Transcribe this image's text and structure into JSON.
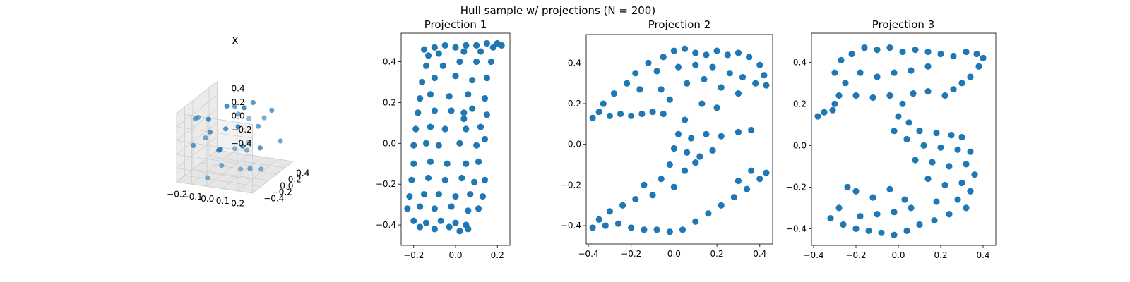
{
  "figure": {
    "suptitle": "Hull sample w/ projections (N = 200)",
    "point_color": "#1f77b4"
  },
  "chart_data": [
    {
      "type": "scatter",
      "projection": "3d",
      "title": "X",
      "xlim": [
        -0.25,
        0.25
      ],
      "ylim": [
        -0.5,
        0.5
      ],
      "zlim": [
        -0.5,
        0.5
      ],
      "xticks": [
        "−0.2",
        "−0.1",
        "0.0",
        "0.1",
        "0.2"
      ],
      "yticks": [
        "−0.4",
        "−0.2",
        "0.0",
        "0.2",
        "0.4"
      ],
      "zticks": [
        "−0.4",
        "−0.2",
        "0.0",
        "0.2",
        "0.4"
      ],
      "grid": true,
      "points": [
        [
          -0.18,
          -0.3,
          0.35
        ],
        [
          -0.12,
          0.25,
          0.3
        ],
        [
          0.05,
          -0.1,
          0.4
        ],
        [
          0.15,
          0.35,
          0.28
        ],
        [
          -0.05,
          0.42,
          0.22
        ],
        [
          0.2,
          -0.4,
          0.18
        ],
        [
          -0.2,
          0.1,
          0.15
        ],
        [
          0.1,
          0.2,
          0.1
        ],
        [
          -0.1,
          -0.35,
          0.12
        ],
        [
          0.0,
          0.0,
          0.45
        ],
        [
          0.18,
          0.05,
          0.32
        ],
        [
          -0.15,
          -0.05,
          0.05
        ],
        [
          0.08,
          -0.3,
          0.0
        ],
        [
          -0.08,
          0.38,
          -0.05
        ],
        [
          0.12,
          -0.15,
          -0.08
        ],
        [
          -0.22,
          -0.2,
          -0.1
        ],
        [
          0.22,
          0.3,
          -0.12
        ],
        [
          0.02,
          0.12,
          -0.18
        ],
        [
          -0.12,
          0.05,
          -0.25
        ],
        [
          0.15,
          -0.42,
          -0.22
        ],
        [
          -0.02,
          -0.25,
          -0.3
        ],
        [
          0.06,
          0.4,
          -0.32
        ],
        [
          -0.18,
          0.32,
          -0.38
        ],
        [
          0.1,
          0.0,
          -0.42
        ],
        [
          -0.06,
          -0.45,
          -0.4
        ],
        [
          0.2,
          -0.1,
          -0.35
        ],
        [
          -0.14,
          -0.38,
          0.42
        ],
        [
          0.04,
          0.3,
          0.38
        ],
        [
          0.16,
          -0.25,
          0.44
        ],
        [
          -0.1,
          0.15,
          0.02
        ]
      ]
    },
    {
      "type": "scatter",
      "title": "Projection 1",
      "xlim": [
        -0.26,
        0.26
      ],
      "ylim": [
        -0.5,
        0.54
      ],
      "xticks": [
        "−0.2",
        "0.0",
        "0.2"
      ],
      "yticks": [
        "−0.4",
        "−0.2",
        "0.0",
        "0.2",
        "0.4"
      ],
      "points": [
        [
          -0.15,
          0.46
        ],
        [
          -0.1,
          0.47
        ],
        [
          -0.05,
          0.48
        ],
        [
          0.0,
          0.47
        ],
        [
          0.05,
          0.48
        ],
        [
          0.1,
          0.48
        ],
        [
          0.15,
          0.49
        ],
        [
          0.2,
          0.49
        ],
        [
          0.22,
          0.48
        ],
        [
          0.18,
          0.47
        ],
        [
          -0.13,
          0.43
        ],
        [
          -0.08,
          0.44
        ],
        [
          0.04,
          0.45
        ],
        [
          0.12,
          0.45
        ],
        [
          -0.14,
          0.38
        ],
        [
          -0.06,
          0.38
        ],
        [
          0.02,
          0.4
        ],
        [
          0.1,
          0.4
        ],
        [
          0.17,
          0.4
        ],
        [
          -0.16,
          0.3
        ],
        [
          -0.1,
          0.32
        ],
        [
          0.0,
          0.33
        ],
        [
          0.08,
          0.31
        ],
        [
          0.15,
          0.32
        ],
        [
          -0.17,
          0.22
        ],
        [
          -0.12,
          0.24
        ],
        [
          -0.03,
          0.23
        ],
        [
          0.06,
          0.24
        ],
        [
          0.14,
          0.22
        ],
        [
          -0.18,
          0.15
        ],
        [
          -0.1,
          0.16
        ],
        [
          -0.02,
          0.16
        ],
        [
          0.04,
          0.15
        ],
        [
          0.08,
          0.17
        ],
        [
          0.15,
          0.14
        ],
        [
          -0.19,
          0.07
        ],
        [
          -0.12,
          0.08
        ],
        [
          -0.05,
          0.07
        ],
        [
          0.05,
          0.07
        ],
        [
          0.12,
          0.08
        ],
        [
          -0.2,
          -0.01
        ],
        [
          -0.14,
          0.0
        ],
        [
          -0.08,
          -0.01
        ],
        [
          0.02,
          0.0
        ],
        [
          0.1,
          -0.01
        ],
        [
          0.14,
          0.02
        ],
        [
          -0.2,
          -0.1
        ],
        [
          -0.12,
          -0.09
        ],
        [
          -0.04,
          -0.1
        ],
        [
          0.05,
          -0.1
        ],
        [
          0.11,
          -0.09
        ],
        [
          -0.21,
          -0.18
        ],
        [
          -0.13,
          -0.17
        ],
        [
          -0.05,
          -0.18
        ],
        [
          0.03,
          -0.17
        ],
        [
          0.09,
          -0.19
        ],
        [
          0.14,
          -0.18
        ],
        [
          -0.22,
          -0.26
        ],
        [
          -0.15,
          -0.25
        ],
        [
          -0.08,
          -0.25
        ],
        [
          0.0,
          -0.26
        ],
        [
          0.07,
          -0.25
        ],
        [
          0.13,
          -0.26
        ],
        [
          -0.23,
          -0.32
        ],
        [
          -0.17,
          -0.31
        ],
        [
          -0.1,
          -0.32
        ],
        [
          -0.02,
          -0.31
        ],
        [
          0.06,
          -0.33
        ],
        [
          0.11,
          -0.32
        ],
        [
          -0.2,
          -0.38
        ],
        [
          -0.14,
          -0.39
        ],
        [
          -0.07,
          -0.38
        ],
        [
          0.0,
          -0.39
        ],
        [
          0.05,
          -0.4
        ],
        [
          -0.17,
          -0.41
        ],
        [
          -0.1,
          -0.42
        ],
        [
          -0.03,
          -0.41
        ],
        [
          0.02,
          -0.43
        ],
        [
          0.06,
          -0.42
        ],
        [
          0.04,
          0.12
        ]
      ]
    },
    {
      "type": "scatter",
      "title": "Projection 2",
      "xlim": [
        -0.41,
        0.46
      ],
      "ylim": [
        -0.49,
        0.54
      ],
      "xticks": [
        "−0.4",
        "−0.2",
        "0.0",
        "0.2",
        "0.4"
      ],
      "yticks": [
        "−0.4",
        "−0.2",
        "0.0",
        "0.2",
        "0.4"
      ],
      "points": [
        [
          -0.38,
          0.13
        ],
        [
          -0.35,
          0.16
        ],
        [
          -0.3,
          0.14
        ],
        [
          -0.25,
          0.15
        ],
        [
          -0.2,
          0.14
        ],
        [
          -0.15,
          0.15
        ],
        [
          -0.1,
          0.16
        ],
        [
          -0.05,
          0.15
        ],
        [
          -0.33,
          0.2
        ],
        [
          -0.28,
          0.25
        ],
        [
          -0.22,
          0.3
        ],
        [
          -0.18,
          0.35
        ],
        [
          -0.12,
          0.4
        ],
        [
          -0.05,
          0.43
        ],
        [
          0.0,
          0.46
        ],
        [
          0.05,
          0.47
        ],
        [
          0.1,
          0.45
        ],
        [
          0.15,
          0.44
        ],
        [
          0.2,
          0.46
        ],
        [
          0.25,
          0.44
        ],
        [
          0.3,
          0.45
        ],
        [
          0.35,
          0.43
        ],
        [
          0.4,
          0.39
        ],
        [
          0.42,
          0.34
        ],
        [
          0.43,
          0.29
        ],
        [
          0.38,
          0.3
        ],
        [
          0.32,
          0.33
        ],
        [
          0.26,
          0.35
        ],
        [
          -0.08,
          0.36
        ],
        [
          0.02,
          0.38
        ],
        [
          0.1,
          0.39
        ],
        [
          0.18,
          0.38
        ],
        [
          -0.16,
          0.27
        ],
        [
          -0.06,
          0.27
        ],
        [
          0.06,
          0.3
        ],
        [
          0.14,
          0.32
        ],
        [
          0.22,
          0.28
        ],
        [
          0.3,
          0.25
        ],
        [
          0.2,
          0.18
        ],
        [
          0.13,
          0.2
        ],
        [
          -0.02,
          0.22
        ],
        [
          0.05,
          0.12
        ],
        [
          0.02,
          0.05
        ],
        [
          0.08,
          0.03
        ],
        [
          0.15,
          0.05
        ],
        [
          0.22,
          0.04
        ],
        [
          0.3,
          0.06
        ],
        [
          0.36,
          0.07
        ],
        [
          0.0,
          -0.02
        ],
        [
          0.06,
          -0.04
        ],
        [
          0.12,
          -0.06
        ],
        [
          0.18,
          -0.03
        ],
        [
          -0.02,
          -0.1
        ],
        [
          0.05,
          -0.13
        ],
        [
          0.1,
          -0.09
        ],
        [
          -0.06,
          -0.17
        ],
        [
          0.0,
          -0.21
        ],
        [
          -0.1,
          -0.25
        ],
        [
          -0.14,
          -0.2
        ],
        [
          -0.18,
          -0.27
        ],
        [
          -0.24,
          -0.3
        ],
        [
          -0.3,
          -0.33
        ],
        [
          -0.35,
          -0.37
        ],
        [
          -0.38,
          -0.41
        ],
        [
          -0.32,
          -0.4
        ],
        [
          -0.26,
          -0.39
        ],
        [
          -0.2,
          -0.41
        ],
        [
          -0.14,
          -0.42
        ],
        [
          -0.08,
          -0.42
        ],
        [
          -0.02,
          -0.43
        ],
        [
          0.04,
          -0.42
        ],
        [
          0.1,
          -0.38
        ],
        [
          0.16,
          -0.34
        ],
        [
          0.22,
          -0.3
        ],
        [
          0.28,
          -0.26
        ],
        [
          0.34,
          -0.22
        ],
        [
          0.4,
          -0.17
        ],
        [
          0.43,
          -0.14
        ],
        [
          0.36,
          -0.13
        ],
        [
          0.3,
          -0.18
        ]
      ]
    },
    {
      "type": "scatter",
      "title": "Projection 3",
      "xlim": [
        -0.41,
        0.46
      ],
      "ylim": [
        -0.48,
        0.54
      ],
      "xticks": [
        "−0.4",
        "−0.2",
        "0.0",
        "0.2",
        "0.4"
      ],
      "yticks": [
        "−0.4",
        "−0.2",
        "0.0",
        "0.2",
        "0.4"
      ],
      "points": [
        [
          -0.38,
          0.14
        ],
        [
          -0.35,
          0.16
        ],
        [
          -0.31,
          0.17
        ],
        [
          -0.3,
          0.2
        ],
        [
          -0.28,
          0.24
        ],
        [
          -0.25,
          0.3
        ],
        [
          -0.3,
          0.35
        ],
        [
          -0.27,
          0.41
        ],
        [
          -0.22,
          0.44
        ],
        [
          -0.16,
          0.47
        ],
        [
          -0.1,
          0.46
        ],
        [
          -0.04,
          0.47
        ],
        [
          0.02,
          0.45
        ],
        [
          0.08,
          0.46
        ],
        [
          0.14,
          0.45
        ],
        [
          0.2,
          0.44
        ],
        [
          0.26,
          0.43
        ],
        [
          0.32,
          0.45
        ],
        [
          0.37,
          0.44
        ],
        [
          0.4,
          0.42
        ],
        [
          0.38,
          0.38
        ],
        [
          0.34,
          0.33
        ],
        [
          0.3,
          0.3
        ],
        [
          0.26,
          0.27
        ],
        [
          0.22,
          0.24
        ],
        [
          -0.18,
          0.35
        ],
        [
          -0.1,
          0.33
        ],
        [
          -0.02,
          0.35
        ],
        [
          0.06,
          0.36
        ],
        [
          0.14,
          0.38
        ],
        [
          -0.2,
          0.24
        ],
        [
          -0.12,
          0.23
        ],
        [
          -0.04,
          0.24
        ],
        [
          0.02,
          0.2
        ],
        [
          0.07,
          0.25
        ],
        [
          0.14,
          0.26
        ],
        [
          0.0,
          0.14
        ],
        [
          0.05,
          0.11
        ],
        [
          -0.02,
          0.07
        ],
        [
          0.04,
          0.03
        ],
        [
          0.1,
          0.07
        ],
        [
          0.18,
          0.06
        ],
        [
          0.25,
          0.05
        ],
        [
          0.3,
          0.04
        ],
        [
          0.12,
          0.0
        ],
        [
          0.2,
          -0.01
        ],
        [
          0.28,
          -0.02
        ],
        [
          0.34,
          -0.03
        ],
        [
          0.08,
          -0.07
        ],
        [
          0.16,
          -0.08
        ],
        [
          0.24,
          -0.1
        ],
        [
          0.32,
          -0.09
        ],
        [
          0.36,
          -0.14
        ],
        [
          0.3,
          -0.18
        ],
        [
          0.22,
          -0.19
        ],
        [
          0.14,
          -0.16
        ],
        [
          0.34,
          -0.22
        ],
        [
          0.28,
          -0.26
        ],
        [
          0.32,
          -0.3
        ],
        [
          0.24,
          -0.33
        ],
        [
          0.17,
          -0.36
        ],
        [
          0.1,
          -0.38
        ],
        [
          0.04,
          -0.41
        ],
        [
          -0.02,
          -0.43
        ],
        [
          -0.08,
          -0.42
        ],
        [
          -0.14,
          -0.41
        ],
        [
          -0.2,
          -0.4
        ],
        [
          -0.26,
          -0.38
        ],
        [
          -0.32,
          -0.35
        ],
        [
          -0.28,
          -0.3
        ],
        [
          -0.18,
          -0.34
        ],
        [
          -0.1,
          -0.33
        ],
        [
          -0.02,
          -0.32
        ],
        [
          0.06,
          -0.3
        ],
        [
          -0.2,
          -0.22
        ],
        [
          -0.12,
          -0.25
        ],
        [
          -0.04,
          -0.21
        ],
        [
          0.03,
          -0.26
        ],
        [
          0.18,
          -0.27
        ],
        [
          -0.24,
          -0.2
        ]
      ]
    }
  ]
}
